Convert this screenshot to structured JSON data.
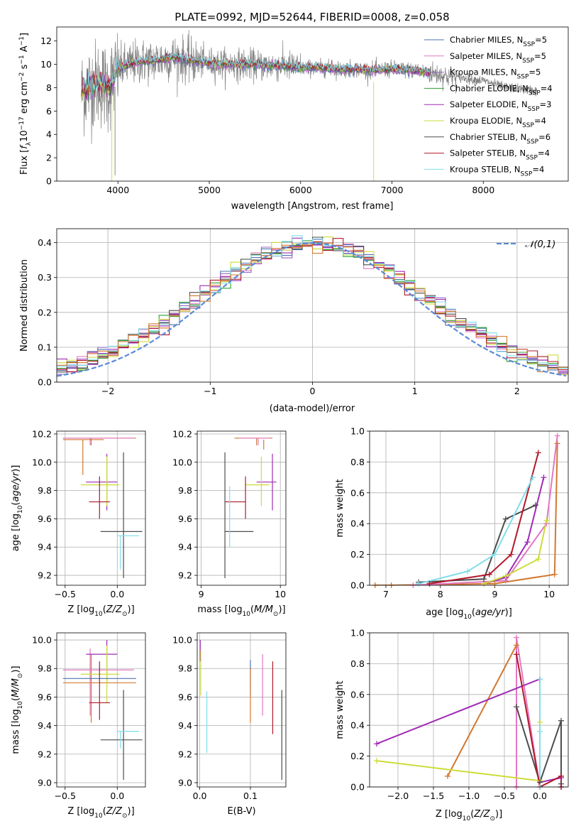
{
  "figure": {
    "title": "PLATE=0992, MJD=52644, FIBERID=0008, z=0.058"
  },
  "colors": {
    "Chabrier MILES": "#4c72b0",
    "Salpeter MILES": "#e377c2",
    "Kroupa MILES": "#9467bd",
    "Chabrier ELODIE": "#2ca02c",
    "Salpeter ELODIE": "#a02bb5",
    "Kroupa ELODIE": "#cddc39",
    "Chabrier STELIB": "#4d4d4d",
    "Salpeter STELIB": "#b2182b",
    "Kroupa STELIB": "#80deea",
    "orange": "#d2782f",
    "data": "#808080"
  },
  "chart_data": [
    {
      "id": "spectrum",
      "type": "line",
      "xlabel": "wavelength [Angstrom, rest frame]",
      "ylabel": "Flux [f_λ 10^-17 erg cm^-2 s^-1 A^-1]",
      "xlim": [
        3330,
        8930
      ],
      "ylim": [
        0,
        13.2
      ],
      "xticks": [
        4000,
        5000,
        6000,
        7000,
        8000
      ],
      "yticks": [
        0,
        2,
        4,
        6,
        8,
        10,
        12
      ],
      "legend_position": "top-right",
      "legend": [
        {
          "label": "Chabrier MILES, N",
          "sub": "SSP",
          "suffix": "=5",
          "color_key": "Chabrier MILES"
        },
        {
          "label": "Salpeter MILES, N",
          "sub": "SSP",
          "suffix": "=5",
          "color_key": "Salpeter MILES"
        },
        {
          "label": "Kroupa MILES, N",
          "sub": "SSP",
          "suffix": "=5",
          "color_key": "Kroupa MILES"
        },
        {
          "label": "Chabrier ELODIE, N",
          "sub": "SSP",
          "suffix": "=4",
          "color_key": "Chabrier ELODIE"
        },
        {
          "label": "Salpeter ELODIE, N",
          "sub": "SSP",
          "suffix": "=3",
          "color_key": "Salpeter ELODIE"
        },
        {
          "label": "Kroupa ELODIE, N",
          "sub": "SSP",
          "suffix": "=4",
          "color_key": "Kroupa ELODIE"
        },
        {
          "label": "Chabrier STELIB, N",
          "sub": "SSP",
          "suffix": "=6",
          "color_key": "Chabrier STELIB"
        },
        {
          "label": "Salpeter STELIB, N",
          "sub": "SSP",
          "suffix": "=4",
          "color_key": "Salpeter STELIB"
        },
        {
          "label": "Kroupa STELIB, N",
          "sub": "SSP",
          "suffix": "=4",
          "color_key": "Kroupa STELIB"
        }
      ],
      "continuum": [
        [
          3600,
          7.6
        ],
        [
          3700,
          8.2
        ],
        [
          3800,
          8.4
        ],
        [
          3900,
          8.0
        ],
        [
          4000,
          9.6
        ],
        [
          4200,
          10.2
        ],
        [
          4400,
          10.3
        ],
        [
          4600,
          10.6
        ],
        [
          4800,
          10.3
        ],
        [
          5000,
          10.1
        ],
        [
          5200,
          10.0
        ],
        [
          5400,
          10.0
        ],
        [
          5600,
          9.9
        ],
        [
          5800,
          9.9
        ],
        [
          6000,
          9.7
        ],
        [
          6200,
          9.7
        ],
        [
          6400,
          9.6
        ],
        [
          6600,
          9.6
        ],
        [
          6800,
          9.5
        ],
        [
          7000,
          9.6
        ],
        [
          7200,
          9.5
        ],
        [
          7400,
          9.3
        ],
        [
          7600,
          9.0
        ],
        [
          7800,
          8.8
        ],
        [
          8000,
          8.6
        ],
        [
          8200,
          8.1
        ],
        [
          8400,
          7.9
        ],
        [
          8600,
          7.7
        ]
      ],
      "model_x_range": [
        3600,
        7420
      ],
      "data_x_range": [
        3600,
        8590
      ],
      "dips": [
        {
          "x": 3933,
          "y": 0.0,
          "color_key": "Kroupa ELODIE"
        },
        {
          "x": 3968,
          "y": 0.5,
          "color_key": "data"
        },
        {
          "x": 6800,
          "y": 0.0,
          "color_key": "Kroupa ELODIE"
        }
      ]
    },
    {
      "id": "residuals",
      "type": "histogram",
      "xlabel": "(data-model)/error",
      "ylabel": "Normed distribution",
      "xlim": [
        -2.5,
        2.5
      ],
      "ylim": [
        0,
        0.44
      ],
      "xticks": [
        -2,
        -1,
        0,
        1,
        2
      ],
      "xticklabels": [
        "−2",
        "−1",
        "0",
        "1",
        "2"
      ],
      "yticks": [
        0.0,
        0.1,
        0.2,
        0.3,
        0.4
      ],
      "yticklabels": [
        "0.0",
        "0.1",
        "0.2",
        "0.3",
        "0.4"
      ],
      "bin_width": 0.1,
      "legend": {
        "label": "𝒩(0,1)",
        "color": "#5b8ad6"
      }
    },
    {
      "id": "age-vs-Z",
      "type": "errorbar",
      "xlabel": "Z [log10(Z/Z⊙)]",
      "ylabel": "age [log10(age/yr)]",
      "xlim": [
        -0.58,
        0.27
      ],
      "ylim": [
        9.13,
        10.22
      ],
      "xticks": [
        -0.5,
        0.0
      ],
      "xticklabels": [
        "−0.5",
        "0.0"
      ],
      "yticks": [
        9.2,
        9.4,
        9.6,
        9.8,
        10.0,
        10.2
      ],
      "yticklabels": [
        "9.2",
        "9.4",
        "9.6",
        "9.8",
        "10.0",
        "10.2"
      ],
      "points": [
        {
          "x": -0.25,
          "y": 10.17,
          "xerr": [
            0.27,
            0.43
          ],
          "yerr": [
            0.05,
            0.0
          ],
          "color_key": "orange"
        },
        {
          "x": -0.26,
          "y": 10.17,
          "xerr": [
            0.26,
            0.42
          ],
          "yerr": [
            0.05,
            0.0
          ],
          "color_key": "Salpeter MILES"
        },
        {
          "x": -0.33,
          "y": 10.16,
          "xerr": [
            0.19,
            0.2
          ],
          "yerr": [
            0.25,
            0.0
          ],
          "color_key": "orange"
        },
        {
          "x": -0.1,
          "y": 9.86,
          "xerr": [
            0.2,
            0.1
          ],
          "yerr": [
            0.2,
            0.2
          ],
          "color_key": "Salpeter ELODIE"
        },
        {
          "x": -0.1,
          "y": 9.84,
          "xerr": [
            0.25,
            0.12
          ],
          "yerr": [
            0.15,
            0.2
          ],
          "color_key": "Kroupa ELODIE"
        },
        {
          "x": -0.17,
          "y": 9.72,
          "xerr": [
            0.1,
            0.1
          ],
          "yerr": [
            0.12,
            0.18
          ],
          "color_key": "Salpeter STELIB"
        },
        {
          "x": 0.06,
          "y": 9.51,
          "xerr": [
            0.22,
            0.18
          ],
          "yerr": [
            0.33,
            0.56
          ],
          "color_key": "Chabrier STELIB"
        },
        {
          "x": 0.03,
          "y": 9.48,
          "xerr": [
            0.03,
            0.18
          ],
          "yerr": [
            0.24,
            0.0
          ],
          "color_key": "Kroupa STELIB"
        }
      ]
    },
    {
      "id": "age-vs-mass",
      "type": "errorbar",
      "xlabel": "mass [log10(M/M⊙)]",
      "xlim": [
        8.95,
        10.07
      ],
      "ylim": [
        9.13,
        10.22
      ],
      "xticks": [
        9,
        10
      ],
      "xticklabels": [
        "9",
        "10"
      ],
      "yticks": [
        9.2,
        9.4,
        9.6,
        9.8,
        10.0,
        10.2
      ],
      "yticklabels": [
        "9.2",
        "9.4",
        "9.6",
        "9.8",
        "10.0",
        "10.2"
      ],
      "points": [
        {
          "x": 9.7,
          "y": 10.17,
          "xerr": [
            0.28,
            0.2
          ],
          "yerr": [
            0.05,
            0.0
          ],
          "color_key": "orange"
        },
        {
          "x": 9.72,
          "y": 10.17,
          "xerr": [
            0.24,
            0.15
          ],
          "yerr": [
            0.05,
            0.0
          ],
          "color_key": "Salpeter MILES"
        },
        {
          "x": 9.79,
          "y": 10.16,
          "xerr": [
            0.0,
            0.0
          ],
          "yerr": [
            0.07,
            0.0
          ],
          "color_key": "orange"
        },
        {
          "x": 9.9,
          "y": 9.86,
          "xerr": [
            0.2,
            0.05
          ],
          "yerr": [
            0.2,
            0.2
          ],
          "color_key": "Salpeter ELODIE"
        },
        {
          "x": 9.76,
          "y": 9.84,
          "xerr": [
            0.2,
            0.1
          ],
          "yerr": [
            0.15,
            0.2
          ],
          "color_key": "Kroupa ELODIE"
        },
        {
          "x": 9.56,
          "y": 9.72,
          "xerr": [
            0.26,
            0.0
          ],
          "yerr": [
            0.12,
            0.18
          ],
          "color_key": "Salpeter STELIB"
        },
        {
          "x": 9.3,
          "y": 9.51,
          "xerr": [
            0.0,
            0.36
          ],
          "yerr": [
            0.33,
            0.56
          ],
          "color_key": "Chabrier STELIB"
        },
        {
          "x": 9.36,
          "y": 9.48,
          "xerr": [
            0.0,
            0.0
          ],
          "yerr": [
            0.08,
            0.35
          ],
          "color_key": "Kroupa STELIB"
        }
      ]
    },
    {
      "id": "mass-weight-vs-age",
      "type": "line",
      "xlabel": "age [log10(age/yr)]",
      "ylabel": "mass weight",
      "xlim": [
        6.7,
        10.35
      ],
      "ylim": [
        0,
        1.0
      ],
      "xticks": [
        7,
        8,
        9,
        10
      ],
      "yticks": [
        0.0,
        0.2,
        0.4,
        0.6,
        0.8,
        1.0
      ],
      "yticklabels": [
        "0.0",
        "0.2",
        "0.4",
        "0.6",
        "0.8",
        "1.0"
      ],
      "series": [
        {
          "color_key": "orange",
          "x": [
            6.8,
            7.1,
            9.0,
            10.1,
            10.15
          ],
          "y": [
            0.0,
            0.0,
            0.01,
            0.07,
            0.92
          ]
        },
        {
          "color_key": "Salpeter MILES",
          "x": [
            7.5,
            9.2,
            9.95,
            10.15
          ],
          "y": [
            0.0,
            0.03,
            0.4,
            0.97
          ]
        },
        {
          "color_key": "Salpeter ELODIE",
          "x": [
            8.8,
            9.2,
            9.6,
            9.9
          ],
          "y": [
            0.01,
            0.05,
            0.28,
            0.7
          ]
        },
        {
          "color_key": "Kroupa ELODIE",
          "x": [
            8.8,
            9.2,
            9.8,
            9.95
          ],
          "y": [
            0.01,
            0.06,
            0.17,
            0.42
          ]
        },
        {
          "color_key": "Chabrier STELIB",
          "x": [
            7.6,
            8.8,
            9.2,
            9.75
          ],
          "y": [
            0.02,
            0.04,
            0.43,
            0.52
          ]
        },
        {
          "color_key": "Salpeter STELIB",
          "x": [
            7.8,
            8.9,
            9.3,
            9.8
          ],
          "y": [
            0.01,
            0.07,
            0.2,
            0.86
          ]
        },
        {
          "color_key": "Kroupa STELIB",
          "x": [
            7.6,
            8.5,
            9.0,
            9.7
          ],
          "y": [
            0.01,
            0.09,
            0.2,
            0.7
          ]
        }
      ]
    },
    {
      "id": "mass-vs-Z",
      "type": "errorbar",
      "xlabel": "Z [log10(Z/Z⊙)]",
      "ylabel": "mass [log10(M/M⊙)]",
      "xlim": [
        -0.58,
        0.27
      ],
      "ylim": [
        8.97,
        10.05
      ],
      "xticks": [
        -0.5,
        0.0
      ],
      "xticklabels": [
        "−0.5",
        "0.0"
      ],
      "yticks": [
        9.0,
        9.2,
        9.4,
        9.6,
        9.8,
        10.0
      ],
      "yticklabels": [
        "9.0",
        "9.2",
        "9.4",
        "9.6",
        "9.8",
        "10.0"
      ],
      "points": [
        {
          "x": -0.25,
          "y": 9.7,
          "xerr": [
            0.27,
            0.43
          ],
          "yerr": [
            0.28,
            0.2
          ],
          "color_key": "orange"
        },
        {
          "x": -0.26,
          "y": 9.79,
          "xerr": [
            0.26,
            0.42
          ],
          "yerr": [
            0.32,
            0.15
          ],
          "color_key": "Salpeter MILES"
        },
        {
          "x": -0.1,
          "y": 9.9,
          "xerr": [
            0.2,
            0.1
          ],
          "yerr": [
            0.2,
            0.1
          ],
          "color_key": "Salpeter ELODIE"
        },
        {
          "x": -0.1,
          "y": 9.76,
          "xerr": [
            0.25,
            0.12
          ],
          "yerr": [
            0.2,
            0.2
          ],
          "color_key": "Kroupa ELODIE"
        },
        {
          "x": -0.17,
          "y": 9.73,
          "xerr": [
            0.35,
            0.35
          ],
          "yerr": [
            0.0,
            0.0
          ],
          "color_key": "Chabrier MILES"
        },
        {
          "x": -0.17,
          "y": 9.56,
          "xerr": [
            0.1,
            0.1
          ],
          "yerr": [
            0.12,
            0.29
          ],
          "color_key": "Salpeter STELIB"
        },
        {
          "x": 0.06,
          "y": 9.3,
          "xerr": [
            0.22,
            0.18
          ],
          "yerr": [
            0.28,
            0.35
          ],
          "color_key": "Chabrier STELIB"
        },
        {
          "x": 0.03,
          "y": 9.36,
          "xerr": [
            0.03,
            0.18
          ],
          "yerr": [
            0.12,
            0.0
          ],
          "color_key": "Kroupa STELIB"
        }
      ]
    },
    {
      "id": "mass-vs-EBV",
      "type": "errorbar",
      "xlabel": "E(B-V)",
      "xlim": [
        -0.005,
        0.17
      ],
      "ylim": [
        8.97,
        10.05
      ],
      "xticks": [
        0.0,
        0.1
      ],
      "xticklabels": [
        "0.0",
        "0.1"
      ],
      "yticks": [
        9.0,
        9.2,
        9.4,
        9.6,
        9.8,
        10.0
      ],
      "yticklabels": [
        "9.0",
        "9.2",
        "9.4",
        "9.6",
        "9.8",
        "10.0"
      ],
      "points": [
        {
          "x": 0.001,
          "y": 9.9,
          "xerr": [
            0,
            0
          ],
          "yerr": [
            0.05,
            0.1
          ],
          "color_key": "Salpeter ELODIE"
        },
        {
          "x": 0.002,
          "y": 9.76,
          "xerr": [
            0,
            0
          ],
          "yerr": [
            0.15,
            0.17
          ],
          "color_key": "Kroupa ELODIE"
        },
        {
          "x": 0.014,
          "y": 9.36,
          "xerr": [
            0,
            0
          ],
          "yerr": [
            0.15,
            0.28
          ],
          "color_key": "Kroupa STELIB"
        },
        {
          "x": 0.1,
          "y": 9.73,
          "xerr": [
            0,
            0
          ],
          "yerr": [
            0.12,
            0.13
          ],
          "color_key": "Chabrier MILES"
        },
        {
          "x": 0.1,
          "y": 9.7,
          "xerr": [
            0,
            0
          ],
          "yerr": [
            0.28,
            0.1
          ],
          "color_key": "orange"
        },
        {
          "x": 0.124,
          "y": 9.79,
          "xerr": [
            0,
            0
          ],
          "yerr": [
            0.32,
            0.11
          ],
          "color_key": "Salpeter MILES"
        },
        {
          "x": 0.144,
          "y": 9.56,
          "xerr": [
            0,
            0
          ],
          "yerr": [
            0.22,
            0.29
          ],
          "color_key": "Salpeter STELIB"
        },
        {
          "x": 0.162,
          "y": 9.3,
          "xerr": [
            0,
            0
          ],
          "yerr": [
            0.28,
            0.35
          ],
          "color_key": "Chabrier STELIB"
        }
      ]
    },
    {
      "id": "mass-weight-vs-Z",
      "type": "line",
      "xlabel": "Z [log10(Z/Z⊙)]",
      "ylabel": "mass weight",
      "xlim": [
        -2.4,
        0.4
      ],
      "ylim": [
        0,
        1.0
      ],
      "xticks": [
        -2.0,
        -1.5,
        -1.0,
        -0.5,
        0.0
      ],
      "xticklabels": [
        "−2.0",
        "−1.5",
        "−1.0",
        "−0.5",
        "0.0"
      ],
      "yticks": [
        0.0,
        0.2,
        0.4,
        0.6,
        0.8,
        1.0
      ],
      "yticklabels": [
        "0.0",
        "0.2",
        "0.4",
        "0.6",
        "0.8",
        "1.0"
      ],
      "series": [
        {
          "color_key": "orange",
          "x": [
            -1.3,
            -0.33,
            -0.33
          ],
          "y": [
            0.07,
            0.92,
            0.0
          ]
        },
        {
          "color_key": "Salpeter MILES",
          "x": [
            -0.33,
            -0.33,
            0.0
          ],
          "y": [
            0.0,
            0.97,
            0.0
          ]
        },
        {
          "color_key": "Salpeter ELODIE",
          "x": [
            -2.3,
            0.0,
            0.0,
            0.3,
            0.3
          ],
          "y": [
            0.28,
            0.7,
            0.03,
            0.06,
            0.0
          ]
        },
        {
          "color_key": "Kroupa ELODIE",
          "x": [
            -2.3,
            0.0,
            0.0
          ],
          "y": [
            0.17,
            0.04,
            0.42
          ]
        },
        {
          "color_key": "Chabrier STELIB",
          "x": [
            -0.33,
            0.0,
            0.3,
            0.3
          ],
          "y": [
            0.52,
            0.03,
            0.43,
            0.02
          ]
        },
        {
          "color_key": "Salpeter STELIB",
          "x": [
            -0.33,
            0.0,
            0.3,
            0.3
          ],
          "y": [
            0.86,
            0.0,
            0.07,
            0.0
          ]
        },
        {
          "color_key": "Kroupa STELIB",
          "x": [
            0.0,
            0.0,
            0.0
          ],
          "y": [
            0.7,
            0.36,
            0.0
          ]
        }
      ]
    }
  ]
}
